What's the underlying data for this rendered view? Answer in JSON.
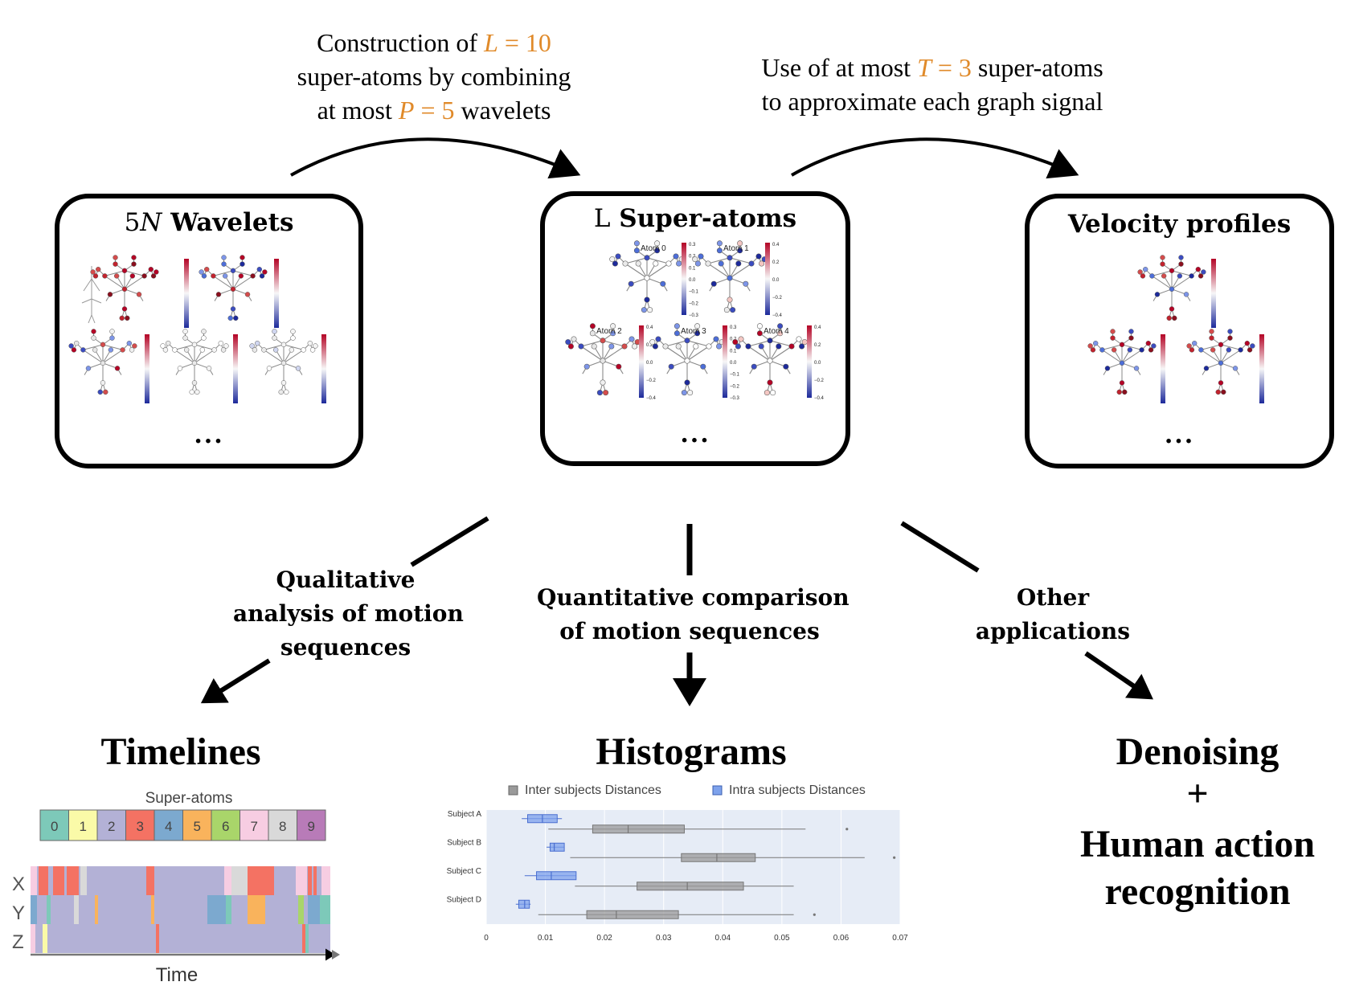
{
  "top_notes": {
    "left": {
      "prefix": "Construction of ",
      "var": "L",
      "eq": " = ",
      "val": "10",
      "line2": "super-atoms by combining",
      "line3_prefix": "at most ",
      "var2": "P",
      "val2": "5",
      "line3_suffix": " wavelets"
    },
    "right": {
      "line1_prefix": "Use of at most ",
      "var": "T",
      "val": "3",
      "line1_suffix": " super-atoms",
      "line2": "to approximate each graph signal"
    }
  },
  "boxes": {
    "wavelets": {
      "title_num": "5",
      "title_var": "N",
      "title_text": " Wavelets",
      "dots": "..."
    },
    "superatoms": {
      "title_prefix": "L",
      "title_text": " Super-atoms",
      "dots": "...",
      "atoms": [
        "Atom 0",
        "Atom 1",
        "Atom 2",
        "Atom 3",
        "Atom 4"
      ],
      "ticks_a": [
        "0.3",
        "0.2",
        "0.1",
        "0.0",
        "−0.1",
        "−0.2",
        "−0.3"
      ],
      "ticks_b": [
        "0.4",
        "0.2",
        "0.0",
        "−0.2",
        "−0.4"
      ]
    },
    "velocity": {
      "title": "Velocity profiles",
      "dots": "..."
    }
  },
  "branches": {
    "left": [
      "Qualitative",
      "analysis of motion",
      "sequences"
    ],
    "center": [
      "Quantitative comparison",
      "of motion sequences"
    ],
    "right": [
      "Other",
      "applications"
    ]
  },
  "outputs": {
    "timelines": "Timelines",
    "histograms": "Histograms",
    "denoising": "Denoising",
    "plus": "+",
    "har_line1": "Human action",
    "har_line2": "recognition"
  },
  "timeline": {
    "header": "Super-atoms",
    "legend": [
      "0",
      "1",
      "2",
      "3",
      "4",
      "5",
      "6",
      "7",
      "8",
      "9"
    ],
    "legend_colors": [
      "#7dc9b9",
      "#fafaa8",
      "#b3b1d6",
      "#f47263",
      "#7ca9cf",
      "#f9b35c",
      "#a9d56a",
      "#f7cde2",
      "#d9d9d9",
      "#b87bb8"
    ],
    "rows": [
      "X",
      "Y",
      "Z"
    ],
    "xlabel": "Time",
    "background": "#b3b1d6"
  },
  "boxplot": {
    "legend": [
      "Inter subjects Distances",
      "Intra subjects Distances"
    ],
    "colors": {
      "inter": "#9a9a9a",
      "intra": "#7ea2ec",
      "bg": "#e6ecf6"
    },
    "subjects": [
      "Subject A",
      "Subject B",
      "Subject C",
      "Subject D"
    ],
    "xticks": [
      "0",
      "0.01",
      "0.02",
      "0.03",
      "0.04",
      "0.05",
      "0.06",
      "0.07"
    ],
    "xlim": [
      0,
      0.07
    ]
  },
  "chart_data": {
    "type": "box",
    "categories": [
      "Subject A",
      "Subject B",
      "Subject C",
      "Subject D"
    ],
    "series": [
      {
        "name": "Inter subjects Distances",
        "boxes": [
          {
            "min": 0.0105,
            "q1": 0.018,
            "median": 0.024,
            "q3": 0.0335,
            "max": 0.054,
            "outliers": [
              0.061
            ]
          },
          {
            "min": 0.0142,
            "q1": 0.033,
            "median": 0.039,
            "q3": 0.0455,
            "max": 0.064,
            "outliers": [
              0.069
            ]
          },
          {
            "min": 0.015,
            "q1": 0.0255,
            "median": 0.034,
            "q3": 0.0435,
            "max": 0.052,
            "outliers": []
          },
          {
            "min": 0.0088,
            "q1": 0.017,
            "median": 0.022,
            "q3": 0.0325,
            "max": 0.052,
            "outliers": [
              0.0555
            ]
          }
        ]
      },
      {
        "name": "Intra subjects Distances",
        "boxes": [
          {
            "min": 0.006,
            "q1": 0.007,
            "median": 0.0095,
            "q3": 0.012,
            "max": 0.0128,
            "outliers": []
          },
          {
            "min": 0.0102,
            "q1": 0.0108,
            "median": 0.0115,
            "q3": 0.0132,
            "max": 0.0132,
            "outliers": []
          },
          {
            "min": 0.0065,
            "q1": 0.0085,
            "median": 0.011,
            "q3": 0.0152,
            "max": 0.0152,
            "outliers": []
          },
          {
            "min": 0.005,
            "q1": 0.0055,
            "median": 0.0065,
            "q3": 0.0073,
            "max": 0.0075,
            "outliers": []
          }
        ]
      }
    ],
    "xlim": [
      0,
      0.07
    ],
    "legend": "top"
  }
}
